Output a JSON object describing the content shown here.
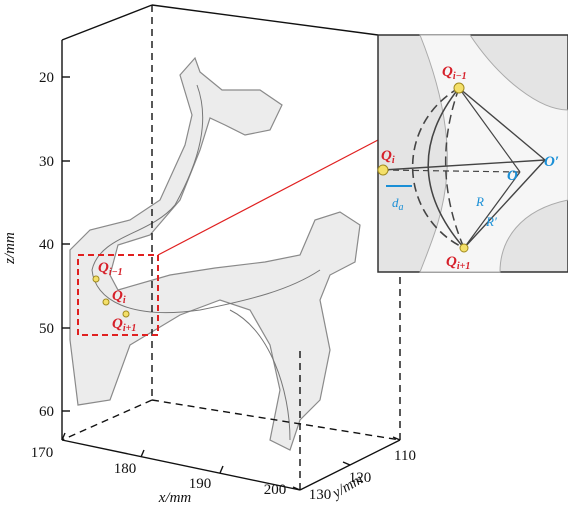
{
  "axes": {
    "z": {
      "label": "z/mm",
      "ticks": [
        20,
        30,
        40,
        50,
        60
      ]
    },
    "x": {
      "label": "x/mm",
      "ticks": [
        170,
        180,
        190,
        200
      ]
    },
    "y": {
      "label": "y/mm",
      "ticks": [
        110,
        120,
        130
      ]
    }
  },
  "main_points": [
    {
      "symbol": "Q",
      "subscript": "i−1"
    },
    {
      "symbol": "Q",
      "subscript": "i"
    },
    {
      "symbol": "Q",
      "subscript": "i+1"
    }
  ],
  "inset": {
    "points": [
      {
        "symbol": "Q",
        "subscript": "i−1"
      },
      {
        "symbol": "Q",
        "subscript": "i"
      },
      {
        "symbol": "Q",
        "subscript": "i+1"
      }
    ],
    "centers": [
      "O",
      "O′"
    ],
    "radii": [
      "R",
      "R′"
    ],
    "distance": {
      "symbol": "d",
      "subscript": "a"
    }
  }
}
